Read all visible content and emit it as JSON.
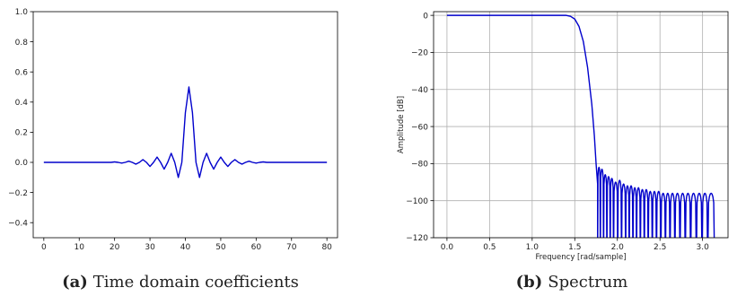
{
  "chart_data": [
    {
      "type": "line",
      "title": "",
      "xlabel": "",
      "ylabel": "",
      "xlim": [
        -3,
        83
      ],
      "ylim": [
        -0.5,
        1.0
      ],
      "xticks": [
        0,
        10,
        20,
        30,
        40,
        50,
        60,
        70,
        80
      ],
      "yticks": [
        -0.4,
        -0.2,
        0.0,
        0.2,
        0.4,
        0.6,
        0.8,
        1.0
      ],
      "ytick_labels": [
        "−0.4",
        "−0.2",
        "0.0",
        "0.2",
        "0.4",
        "0.6",
        "0.8",
        "1.0"
      ],
      "grid": false,
      "color": "#0000cc",
      "series": [
        {
          "x": [
            0,
            1,
            2,
            3,
            4,
            5,
            6,
            7,
            8,
            9,
            10,
            11,
            12,
            13,
            14,
            15,
            16,
            17,
            18,
            19,
            20,
            21,
            22,
            23,
            24,
            25,
            26,
            27,
            28,
            29,
            30,
            31,
            32,
            33,
            34,
            35,
            36,
            37,
            38,
            39,
            40,
            41,
            42,
            43,
            44,
            45,
            46,
            47,
            48,
            49,
            50,
            51,
            52,
            53,
            54,
            55,
            56,
            57,
            58,
            59,
            60,
            61,
            62,
            63,
            64,
            65,
            66,
            67,
            68,
            69,
            70,
            71,
            72,
            73,
            74,
            75,
            76,
            77,
            78,
            79,
            80
          ],
          "y": [
            0,
            0,
            0,
            0,
            0,
            0,
            0,
            0,
            0,
            0,
            0,
            0,
            0,
            0,
            0,
            0,
            0,
            0,
            0,
            0,
            0.003,
            0,
            -0.005,
            0,
            0.008,
            0,
            -0.012,
            0,
            0.018,
            0,
            -0.027,
            0,
            0.035,
            0,
            -0.045,
            0,
            0.06,
            0,
            -0.1,
            0,
            0.33,
            0.5,
            0.33,
            0,
            -0.1,
            0,
            0.06,
            0,
            -0.045,
            0,
            0.035,
            0,
            -0.027,
            0,
            0.018,
            0,
            -0.012,
            0,
            0.008,
            0,
            -0.005,
            0,
            0.003,
            0,
            0,
            0,
            0,
            0,
            0,
            0,
            0,
            0,
            0,
            0,
            0,
            0,
            0,
            0,
            0,
            0,
            0
          ]
        }
      ]
    },
    {
      "type": "line",
      "title": "",
      "xlabel": "Frequency [rad/sample]",
      "ylabel": "Amplitude [dB]",
      "xlim": [
        -0.15707963,
        3.29867229
      ],
      "ylim": [
        -120,
        2
      ],
      "xticks": [
        0.0,
        0.5,
        1.0,
        1.5,
        2.0,
        2.5,
        3.0
      ],
      "xtick_labels": [
        "0.0",
        "0.5",
        "1.0",
        "1.5",
        "2.0",
        "2.5",
        "3.0"
      ],
      "yticks": [
        0,
        -20,
        -40,
        -60,
        -80,
        -100,
        -120
      ],
      "ytick_labels": [
        "0",
        "−20",
        "−40",
        "−60",
        "−80",
        "−100",
        "−120"
      ],
      "grid": true,
      "color": "#0000cc",
      "series": [
        {
          "passband": {
            "x": [
              0.0,
              1.4
            ],
            "y": [
              0,
              0
            ]
          },
          "transition": {
            "x": [
              1.4,
              1.45,
              1.5,
              1.55,
              1.6,
              1.65,
              1.7,
              1.73,
              1.75,
              1.768
            ],
            "y": [
              0,
              -0.5,
              -2,
              -6,
              -14,
              -28,
              -48,
              -65,
              -80,
              -91
            ]
          },
          "stopband_nulls": [
            1.768,
            1.8,
            1.838,
            1.877,
            1.916,
            1.955,
            2.004,
            2.049,
            2.097,
            2.139,
            2.183,
            2.225,
            2.27,
            2.316,
            2.362,
            2.41,
            2.459,
            2.51,
            2.564,
            2.618,
            2.675,
            2.735,
            2.797,
            2.86,
            2.927,
            2.994,
            3.06,
            3.141
          ],
          "stopband_peaks": [
            -91,
            -82,
            -83,
            -86,
            -87,
            -88,
            -90,
            -89,
            -91,
            -92,
            -92,
            -93,
            -93,
            -94,
            -94,
            -95,
            -95,
            -95,
            -96,
            -96,
            -96,
            -96,
            -96,
            -96,
            -96,
            -96,
            -96,
            -96
          ]
        }
      ]
    }
  ],
  "captions": [
    {
      "label": "(a)",
      "text": "Time domain coefficients"
    },
    {
      "label": "(b)",
      "text": "Spectrum"
    }
  ]
}
